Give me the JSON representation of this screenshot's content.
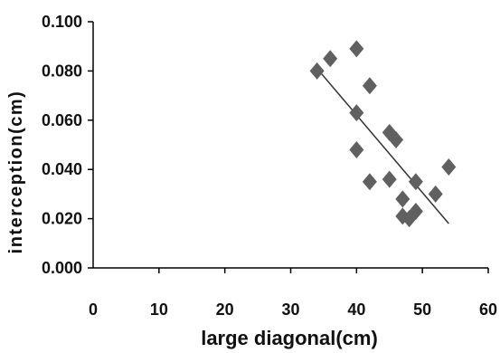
{
  "chart_data": {
    "type": "scatter",
    "xlabel": "large diagonal(cm)",
    "ylabel": "interception(cm)",
    "xlim": [
      0,
      60
    ],
    "ylim": [
      0,
      0.1
    ],
    "x_ticks": [
      "0",
      "10",
      "20",
      "30",
      "40",
      "50",
      "60"
    ],
    "y_ticks": [
      "0.000",
      "0.020",
      "0.040",
      "0.060",
      "0.080",
      "0.100"
    ],
    "grid": false,
    "legend": "none",
    "marker": "diamond",
    "marker_color": "#606060",
    "trendline_color": "#333333",
    "series": [
      {
        "points": [
          {
            "x": 34,
            "y": 0.08
          },
          {
            "x": 36,
            "y": 0.085
          },
          {
            "x": 40,
            "y": 0.089
          },
          {
            "x": 42,
            "y": 0.074
          },
          {
            "x": 40,
            "y": 0.063
          },
          {
            "x": 40,
            "y": 0.048
          },
          {
            "x": 42,
            "y": 0.035
          },
          {
            "x": 45,
            "y": 0.055
          },
          {
            "x": 46,
            "y": 0.052
          },
          {
            "x": 45,
            "y": 0.036
          },
          {
            "x": 47,
            "y": 0.028
          },
          {
            "x": 47,
            "y": 0.021
          },
          {
            "x": 48,
            "y": 0.02
          },
          {
            "x": 49,
            "y": 0.023
          },
          {
            "x": 49,
            "y": 0.035
          },
          {
            "x": 52,
            "y": 0.03
          },
          {
            "x": 54,
            "y": 0.041
          }
        ],
        "trendline": {
          "x": [
            34,
            54
          ],
          "y": [
            0.081,
            0.018
          ]
        }
      }
    ]
  }
}
